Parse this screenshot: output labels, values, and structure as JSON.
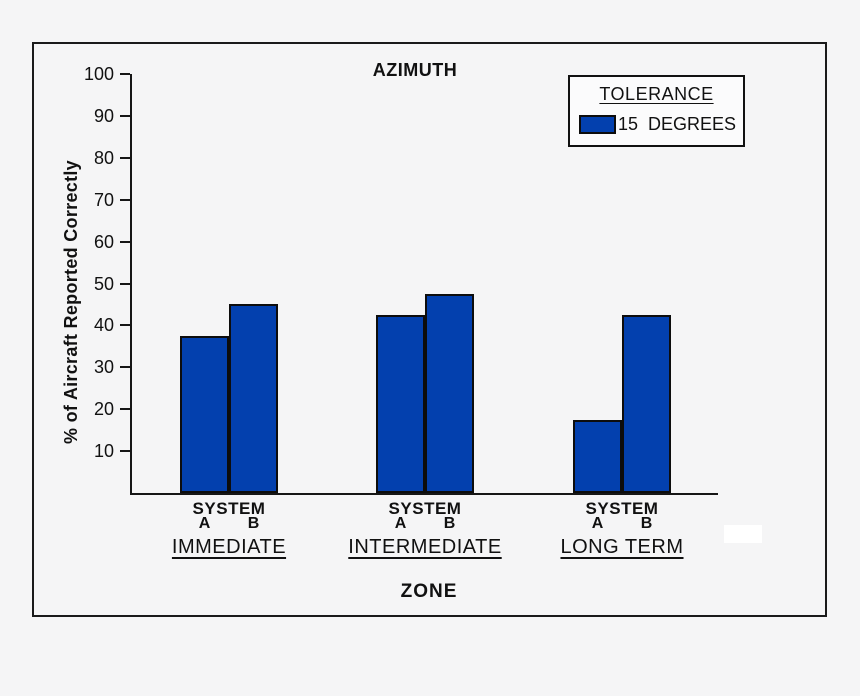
{
  "chart_data": {
    "type": "bar",
    "title": "AZIMUTH",
    "xlabel": "ZONE",
    "ylabel": "% of Aircraft Reported Correctly",
    "ylim": [
      0,
      100
    ],
    "yticks": [
      10,
      20,
      30,
      40,
      50,
      60,
      70,
      80,
      90,
      100
    ],
    "grid": false,
    "categories": [
      "IMMEDIATE",
      "INTERMEDIATE",
      "LONG TERM"
    ],
    "group_sublabel": "SYSTEM",
    "series": [
      {
        "name": "SYSTEM A",
        "short_label": "A",
        "values": [
          37.5,
          42.5,
          17.5
        ]
      },
      {
        "name": "SYSTEM B",
        "short_label": "B",
        "values": [
          45,
          47.5,
          42.5
        ]
      }
    ],
    "legend": {
      "title": "TOLERANCE",
      "position": "top-right",
      "entries": [
        {
          "label": "15  DEGREES",
          "color": "#0340ae"
        }
      ]
    },
    "colors": {
      "bar_fill": "#0340ae",
      "bar_border": "#0d0d0d",
      "axis": "#161616",
      "text": "#111111",
      "background": "#f5f5f6",
      "frame_border": "#1a1a1a"
    }
  }
}
